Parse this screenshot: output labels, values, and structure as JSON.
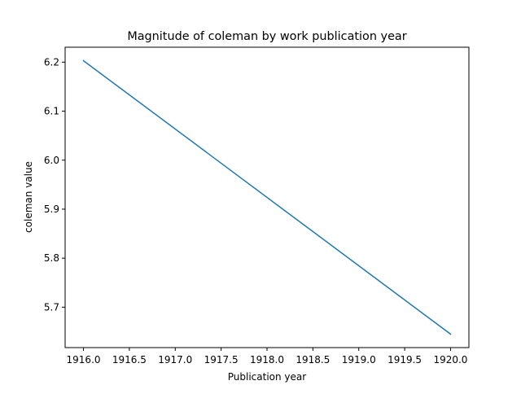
{
  "chart_data": {
    "type": "line",
    "title": "Magnitude of coleman by work publication year",
    "xlabel": "Publication year",
    "ylabel": "coleman value",
    "xlim": [
      1915.8,
      1920.2
    ],
    "ylim": [
      5.6175,
      6.2305
    ],
    "x_ticks": [
      1916.0,
      1916.5,
      1917.0,
      1917.5,
      1918.0,
      1918.5,
      1919.0,
      1919.5,
      1920.0
    ],
    "x_tick_labels": [
      "1916.0",
      "1916.5",
      "1917.0",
      "1917.5",
      "1918.0",
      "1918.5",
      "1919.0",
      "1919.5",
      "1920.0"
    ],
    "y_ticks": [
      5.7,
      5.8,
      5.9,
      6.0,
      6.1,
      6.2
    ],
    "y_tick_labels": [
      "5.7",
      "5.8",
      "5.9",
      "6.0",
      "6.1",
      "6.2"
    ],
    "grid": false,
    "series": [
      {
        "color": "#1f77b4",
        "x": [
          1916,
          1920
        ],
        "y": [
          6.203,
          5.645
        ]
      }
    ]
  }
}
